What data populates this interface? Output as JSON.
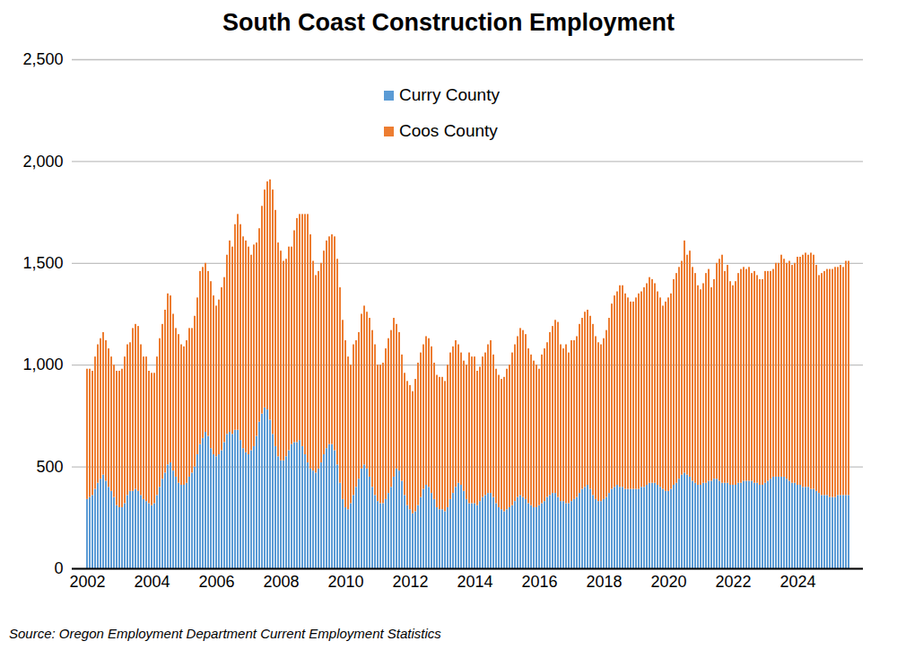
{
  "chart_data": {
    "type": "bar",
    "title": "South Coast Construction Employment",
    "caption": "Source: Oregon Employment Department Current Employment Statistics",
    "stacked": true,
    "grid": true,
    "legend": "top",
    "categories": [
      "2002",
      null,
      null,
      null,
      null,
      null,
      null,
      null,
      null,
      null,
      null,
      null,
      null,
      null,
      null,
      null,
      null,
      null,
      null,
      null,
      null,
      null,
      null,
      null,
      "2004",
      null,
      null,
      null,
      null,
      null,
      null,
      null,
      null,
      null,
      null,
      null,
      null,
      null,
      null,
      null,
      null,
      null,
      null,
      null,
      null,
      null,
      null,
      null,
      "2006",
      null,
      null,
      null,
      null,
      null,
      null,
      null,
      null,
      null,
      null,
      null,
      null,
      null,
      null,
      null,
      null,
      null,
      null,
      null,
      null,
      null,
      null,
      null,
      "2008",
      null,
      null,
      null,
      null,
      null,
      null,
      null,
      null,
      null,
      null,
      null,
      null,
      null,
      null,
      null,
      null,
      null,
      null,
      null,
      null,
      null,
      null,
      null,
      "2010",
      null,
      null,
      null,
      null,
      null,
      null,
      null,
      null,
      null,
      null,
      null,
      null,
      null,
      null,
      null,
      null,
      null,
      null,
      null,
      null,
      null,
      null,
      null,
      "2012",
      null,
      null,
      null,
      null,
      null,
      null,
      null,
      null,
      null,
      null,
      null,
      null,
      null,
      null,
      null,
      null,
      null,
      null,
      null,
      null,
      null,
      null,
      null,
      "2014",
      null,
      null,
      null,
      null,
      null,
      null,
      null,
      null,
      null,
      null,
      null,
      null,
      null,
      null,
      null,
      null,
      null,
      null,
      null,
      null,
      null,
      null,
      null,
      "2016",
      null,
      null,
      null,
      null,
      null,
      null,
      null,
      null,
      null,
      null,
      null,
      null,
      null,
      null,
      null,
      null,
      null,
      null,
      null,
      null,
      null,
      null,
      null,
      "2018",
      null,
      null,
      null,
      null,
      null,
      null,
      null,
      null,
      null,
      null,
      null,
      null,
      null,
      null,
      null,
      null,
      null,
      null,
      null,
      null,
      null,
      null,
      null,
      "2020",
      null,
      null,
      null,
      null,
      null,
      null,
      null,
      null,
      null,
      null,
      null,
      null,
      null,
      null,
      null,
      null,
      null,
      null,
      null,
      null,
      null,
      null,
      null,
      "2022",
      null,
      null,
      null,
      null,
      null,
      null,
      null,
      null,
      null,
      null,
      null,
      null,
      null,
      null,
      null,
      null,
      null,
      null,
      null,
      null,
      null,
      null,
      null,
      "2024",
      null,
      null,
      null,
      null,
      null,
      null,
      null,
      null,
      null,
      null,
      null,
      null,
      null,
      null,
      null,
      null,
      null,
      null,
      null
    ],
    "series": [
      {
        "name": "Curry County",
        "color": "#5b9bd5",
        "values": [
          340,
          350,
          360,
          390,
          420,
          440,
          460,
          430,
          400,
          380,
          350,
          310,
          300,
          300,
          320,
          360,
          380,
          380,
          390,
          380,
          360,
          340,
          330,
          320,
          310,
          320,
          360,
          400,
          440,
          470,
          510,
          520,
          480,
          450,
          420,
          410,
          410,
          420,
          450,
          470,
          500,
          560,
          610,
          640,
          670,
          650,
          590,
          560,
          550,
          560,
          580,
          620,
          660,
          670,
          660,
          680,
          680,
          630,
          590,
          570,
          560,
          580,
          600,
          650,
          720,
          760,
          790,
          780,
          730,
          660,
          600,
          550,
          530,
          530,
          550,
          580,
          610,
          620,
          620,
          630,
          600,
          560,
          520,
          490,
          480,
          470,
          490,
          520,
          560,
          590,
          610,
          610,
          580,
          510,
          420,
          340,
          300,
          290,
          320,
          360,
          400,
          440,
          490,
          510,
          490,
          450,
          400,
          360,
          330,
          320,
          320,
          340,
          370,
          400,
          450,
          490,
          480,
          430,
          360,
          310,
          290,
          270,
          280,
          310,
          350,
          390,
          410,
          400,
          370,
          340,
          300,
          290,
          290,
          280,
          300,
          340,
          370,
          400,
          420,
          410,
          380,
          340,
          320,
          320,
          320,
          310,
          330,
          350,
          360,
          370,
          370,
          350,
          320,
          300,
          290,
          280,
          290,
          300,
          310,
          330,
          350,
          360,
          350,
          340,
          320,
          310,
          300,
          300,
          310,
          320,
          330,
          350,
          360,
          370,
          370,
          350,
          330,
          330,
          320,
          320,
          330,
          340,
          350,
          370,
          390,
          400,
          410,
          390,
          360,
          340,
          330,
          330,
          340,
          350,
          370,
          390,
          400,
          410,
          400,
          400,
          390,
          390,
          390,
          390,
          390,
          390,
          400,
          400,
          410,
          420,
          420,
          420,
          410,
          400,
          390,
          380,
          380,
          390,
          410,
          420,
          440,
          460,
          470,
          460,
          450,
          430,
          420,
          410,
          410,
          420,
          420,
          430,
          430,
          440,
          440,
          430,
          420,
          420,
          420,
          410,
          410,
          410,
          420,
          420,
          430,
          430,
          430,
          430,
          420,
          420,
          410,
          410,
          420,
          430,
          440,
          450,
          450,
          450,
          450,
          450,
          440,
          430,
          420,
          420,
          410,
          410,
          400,
          400,
          400,
          390,
          390,
          380,
          370,
          360,
          360,
          360,
          350,
          350,
          350,
          360,
          360,
          360,
          360,
          360
        ]
      },
      {
        "name": "Coos County",
        "color": "#ed7d31",
        "values": [
          640,
          630,
          610,
          650,
          680,
          690,
          700,
          690,
          680,
          660,
          650,
          660,
          670,
          680,
          720,
          740,
          730,
          800,
          810,
          810,
          740,
          700,
          710,
          650,
          650,
          640,
          680,
          730,
          760,
          800,
          840,
          820,
          770,
          730,
          730,
          690,
          680,
          700,
          730,
          710,
          740,
          770,
          850,
          840,
          830,
          810,
          820,
          780,
          740,
          760,
          800,
          810,
          880,
          940,
          920,
          1010,
          1060,
          1060,
          1040,
          1040,
          1020,
          960,
          990,
          950,
          950,
          1020,
          1070,
          1120,
          1180,
          1200,
          1160,
          1050,
          1030,
          980,
          970,
          1000,
          970,
          1040,
          1100,
          1110,
          1140,
          1180,
          1220,
          1150,
          1030,
          970,
          970,
          980,
          1000,
          1020,
          1020,
          1030,
          1050,
          1010,
          960,
          880,
          820,
          750,
          680,
          740,
          720,
          720,
          760,
          780,
          770,
          780,
          770,
          740,
          670,
          680,
          690,
          740,
          760,
          770,
          780,
          710,
          680,
          620,
          600,
          610,
          610,
          600,
          650,
          700,
          710,
          710,
          730,
          730,
          720,
          670,
          650,
          650,
          650,
          640,
          700,
          720,
          720,
          720,
          680,
          650,
          640,
          660,
          740,
          720,
          720,
          660,
          660,
          690,
          700,
          730,
          750,
          700,
          660,
          650,
          640,
          660,
          690,
          700,
          750,
          770,
          790,
          820,
          820,
          810,
          760,
          740,
          720,
          700,
          670,
          730,
          750,
          760,
          800,
          820,
          850,
          860,
          770,
          750,
          780,
          740,
          790,
          780,
          790,
          830,
          840,
          860,
          860,
          850,
          840,
          800,
          780,
          770,
          790,
          820,
          860,
          910,
          940,
          950,
          990,
          990,
          960,
          940,
          920,
          920,
          940,
          960,
          960,
          980,
          990,
          1010,
          1000,
          980,
          950,
          930,
          900,
          930,
          950,
          960,
          1010,
          1030,
          1040,
          1050,
          1140,
          1080,
          1110,
          1050,
          1030,
          980,
          960,
          980,
          1030,
          1040,
          950,
          980,
          1060,
          1090,
          1120,
          1040,
          1070,
          1000,
          980,
          1000,
          1030,
          1050,
          1050,
          1040,
          1050,
          1020,
          1040,
          1020,
          1010,
          1010,
          1040,
          1030,
          1020,
          1020,
          1050,
          1050,
          1090,
          1070,
          1060,
          1080,
          1070,
          1080,
          1120,
          1120,
          1140,
          1150,
          1140,
          1160,
          1150,
          1110,
          1070,
          1090,
          1100,
          1110,
          1120,
          1120,
          1130,
          1120,
          1130,
          1120,
          1150,
          1150
        ]
      }
    ],
    "ylim": [
      0,
      2500
    ],
    "yticks": [
      0,
      500,
      {
        "value": 1000,
        "label": "1,000"
      },
      {
        "value": 1500,
        "label": "1,500"
      },
      {
        "value": 2000,
        "label": "2,000"
      },
      {
        "value": 2500,
        "label": "2,500"
      }
    ]
  }
}
